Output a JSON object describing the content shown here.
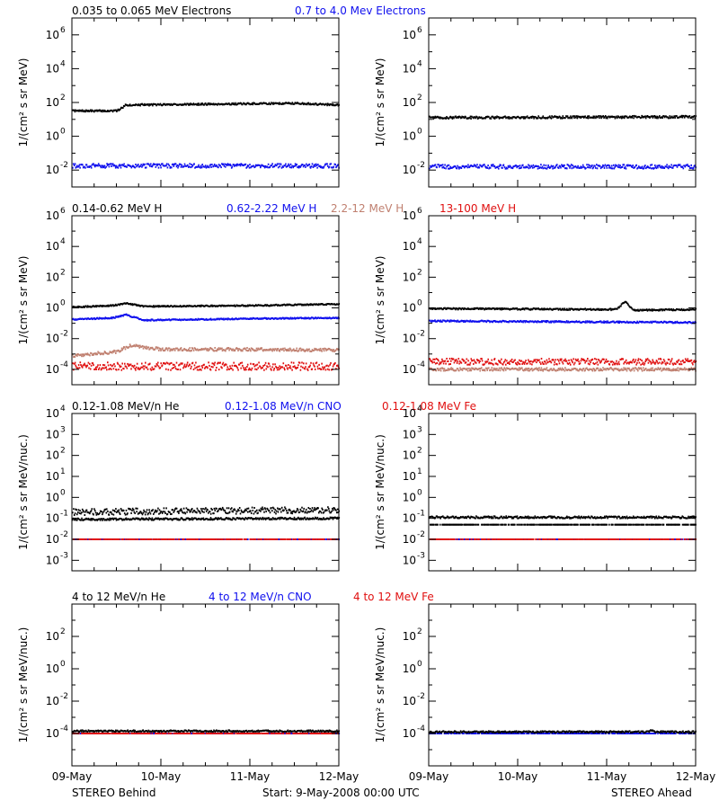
{
  "colors": {
    "black": "#000000",
    "blue": "#1010ee",
    "brown": "#c08070",
    "red": "#e01010"
  },
  "footer": {
    "left": "STEREO Behind",
    "center": "Start:  9-May-2008 00:00 UTC",
    "right": "STEREO Ahead"
  },
  "x_tick_labels": [
    "09-May",
    "10-May",
    "11-May",
    "12-May"
  ],
  "chart_data": [
    {
      "type": "scatter",
      "row": 0,
      "ylabel": "1/(cm² s sr MeV)",
      "ylim_exp": [
        -3,
        7
      ],
      "yticks_exp": [
        -2,
        0,
        2,
        4,
        6
      ],
      "xlim_days": [
        0,
        3
      ],
      "legend": [
        {
          "label": "0.035 to 0.065 MeV Electrons",
          "color": "black"
        },
        {
          "label": "0.7 to 4.0 Mev Electrons",
          "color": "blue"
        }
      ],
      "panels": [
        {
          "spacecraft": "STEREO Behind",
          "series": [
            {
              "color": "black",
              "x": [
                0,
                0.5,
                0.6,
                1.5,
                2.5,
                3.0
              ],
              "log10": [
                1.5,
                1.5,
                1.85,
                1.9,
                1.95,
                1.85
              ],
              "jitter": 0.05
            },
            {
              "color": "blue",
              "x": [
                0,
                3.0
              ],
              "log10": [
                -1.75,
                -1.75
              ],
              "jitter": 0.12
            }
          ]
        },
        {
          "spacecraft": "STEREO Ahead",
          "series": [
            {
              "color": "black",
              "x": [
                0,
                3.0
              ],
              "log10": [
                1.1,
                1.15
              ],
              "jitter": 0.07
            },
            {
              "color": "blue",
              "x": [
                0,
                3.0
              ],
              "log10": [
                -1.8,
                -1.8
              ],
              "jitter": 0.12
            }
          ]
        }
      ]
    },
    {
      "type": "scatter",
      "row": 1,
      "ylabel": "1/(cm² s sr MeV)",
      "ylim_exp": [
        -5,
        6
      ],
      "yticks_exp": [
        -4,
        -2,
        0,
        2,
        4,
        6
      ],
      "xlim_days": [
        0,
        3
      ],
      "legend": [
        {
          "label": "0.14-0.62 MeV H",
          "color": "black"
        },
        {
          "label": "0.62-2.22 MeV H",
          "color": "blue"
        },
        {
          "label": "2.2-12 MeV H",
          "color": "brown"
        },
        {
          "label": "13-100 MeV H",
          "color": "red"
        }
      ],
      "panels": [
        {
          "spacecraft": "STEREO Behind",
          "series": [
            {
              "color": "black",
              "x": [
                0,
                0.45,
                0.6,
                0.8,
                2.0,
                3.0
              ],
              "log10": [
                0.05,
                0.15,
                0.3,
                0.1,
                0.15,
                0.25
              ],
              "jitter": 0.04
            },
            {
              "color": "blue",
              "x": [
                0,
                0.45,
                0.6,
                0.8,
                2.0,
                3.0
              ],
              "log10": [
                -0.75,
                -0.65,
                -0.45,
                -0.8,
                -0.7,
                -0.65
              ],
              "jitter": 0.04
            },
            {
              "color": "brown",
              "x": [
                0,
                0.5,
                0.65,
                1.0,
                2.0,
                3.0
              ],
              "log10": [
                -3.1,
                -2.85,
                -2.45,
                -2.7,
                -2.7,
                -2.75
              ],
              "jitter": 0.1
            },
            {
              "color": "red",
              "x": [
                0,
                3.0
              ],
              "log10": [
                -3.8,
                -3.8
              ],
              "jitter": 0.25
            }
          ]
        },
        {
          "spacecraft": "STEREO Ahead",
          "series": [
            {
              "color": "black",
              "x": [
                0,
                2.1,
                2.2,
                2.3,
                3.0
              ],
              "log10": [
                -0.05,
                -0.1,
                0.4,
                -0.15,
                -0.1
              ],
              "jitter": 0.05
            },
            {
              "color": "blue",
              "x": [
                0,
                3.0
              ],
              "log10": [
                -0.85,
                -0.95
              ],
              "jitter": 0.05
            },
            {
              "color": "brown",
              "x": [
                0,
                3.0
              ],
              "log10": [
                -4.0,
                -4.0
              ],
              "jitter": 0.1
            },
            {
              "color": "red",
              "x": [
                0,
                3.0
              ],
              "log10": [
                -3.5,
                -3.5
              ],
              "jitter": 0.2
            }
          ]
        }
      ]
    },
    {
      "type": "scatter",
      "row": 2,
      "ylabel": "1/(cm² s sr MeV/nuc.)",
      "ylim_exp": [
        -3.5,
        4
      ],
      "yticks_exp": [
        -3,
        -2,
        -1,
        0,
        1,
        2,
        3,
        4
      ],
      "xlim_days": [
        0,
        3
      ],
      "legend": [
        {
          "label": "0.12-1.08 MeV/n He",
          "color": "black"
        },
        {
          "label": "0.12-1.08 MeV/n CNO",
          "color": "blue"
        },
        {
          "label": "0.12-1.08 MeV Fe",
          "color": "red"
        }
      ],
      "panels": [
        {
          "spacecraft": "STEREO Behind",
          "series": [
            {
              "color": "black",
              "x": [
                0,
                3.0
              ],
              "log10": [
                -1.05,
                -1.0
              ],
              "jitter": 0.05
            },
            {
              "color": "black",
              "x": [
                0,
                3.0
              ],
              "log10": [
                -0.7,
                -0.6
              ],
              "jitter": 0.15
            },
            {
              "color": "blue",
              "x": [
                0,
                3.0
              ],
              "log10": [
                -2.0,
                -2.0
              ],
              "jitter": 0.0
            },
            {
              "color": "red",
              "x": [
                0,
                3.0
              ],
              "log10": [
                -2.0,
                -2.0
              ],
              "jitter": 0.0
            }
          ]
        },
        {
          "spacecraft": "STEREO Ahead",
          "series": [
            {
              "color": "black",
              "x": [
                0,
                3.0
              ],
              "log10": [
                -1.3,
                -1.3
              ],
              "jitter": 0.0
            },
            {
              "color": "black",
              "x": [
                0,
                3.0
              ],
              "log10": [
                -0.95,
                -0.95
              ],
              "jitter": 0.05
            },
            {
              "color": "blue",
              "x": [
                0,
                3.0
              ],
              "log10": [
                -2.0,
                -2.0
              ],
              "jitter": 0.0
            },
            {
              "color": "red",
              "x": [
                0,
                3.0
              ],
              "log10": [
                -2.0,
                -2.0
              ],
              "jitter": 0.0
            }
          ]
        }
      ]
    },
    {
      "type": "scatter",
      "row": 3,
      "ylabel": "1/(cm² s sr MeV/nuc.)",
      "ylim_exp": [
        -6,
        4
      ],
      "yticks_exp": [
        -4,
        -2,
        0,
        2
      ],
      "xlim_days": [
        0,
        3
      ],
      "legend": [
        {
          "label": "4 to 12 MeV/n He",
          "color": "black"
        },
        {
          "label": "4 to 12 MeV/n CNO",
          "color": "blue"
        },
        {
          "label": "4 to 12 MeV Fe",
          "color": "red"
        }
      ],
      "panels": [
        {
          "spacecraft": "STEREO Behind",
          "series": [
            {
              "color": "blue",
              "x": [
                0,
                3.0
              ],
              "log10": [
                -4.0,
                -4.0
              ],
              "jitter": 0.0
            },
            {
              "color": "black",
              "x": [
                0,
                3.0
              ],
              "log10": [
                -3.85,
                -3.85
              ],
              "jitter": 0.05
            },
            {
              "color": "red",
              "x": [
                0,
                3.0
              ],
              "log10": [
                -4.0,
                -4.0
              ],
              "jitter": 0.0
            }
          ]
        },
        {
          "spacecraft": "STEREO Ahead",
          "series": [
            {
              "color": "blue",
              "x": [
                0,
                3.0
              ],
              "log10": [
                -4.0,
                -4.0
              ],
              "jitter": 0.0
            },
            {
              "color": "black",
              "x": [
                0,
                2.45,
                2.5,
                2.55,
                3.0
              ],
              "log10": [
                -3.9,
                -3.9,
                -3.8,
                -3.9,
                -3.9
              ],
              "jitter": 0.05
            }
          ]
        }
      ]
    }
  ]
}
